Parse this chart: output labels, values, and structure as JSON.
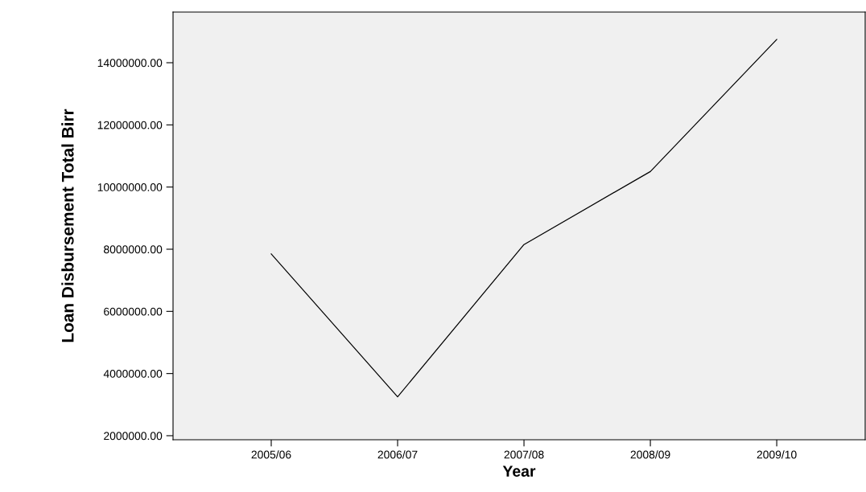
{
  "chart_data": {
    "type": "line",
    "xlabel": "Year",
    "ylabel": "Loan Disbursement Total Birr",
    "categories": [
      "2005/06",
      "2006/07",
      "2007/08",
      "2008/09",
      "2009/10"
    ],
    "series": [
      {
        "color": "#000000",
        "values": [
          7850000,
          3250000,
          8150000,
          10500000,
          14750000
        ]
      }
    ],
    "ylim": [
      1870000,
      15630000
    ],
    "yticks": [
      {
        "value": 2000000,
        "label": "2000000.00"
      },
      {
        "value": 4000000,
        "label": "4000000.00"
      },
      {
        "value": 6000000,
        "label": "6000000.00"
      },
      {
        "value": 8000000,
        "label": "8000000.00"
      },
      {
        "value": 10000000,
        "label": "10000000.00"
      },
      {
        "value": 12000000,
        "label": "12000000.00"
      },
      {
        "value": 14000000,
        "label": "14000000.00"
      }
    ],
    "grid": false,
    "legend": false,
    "marker": "none",
    "line_style": "solid"
  }
}
